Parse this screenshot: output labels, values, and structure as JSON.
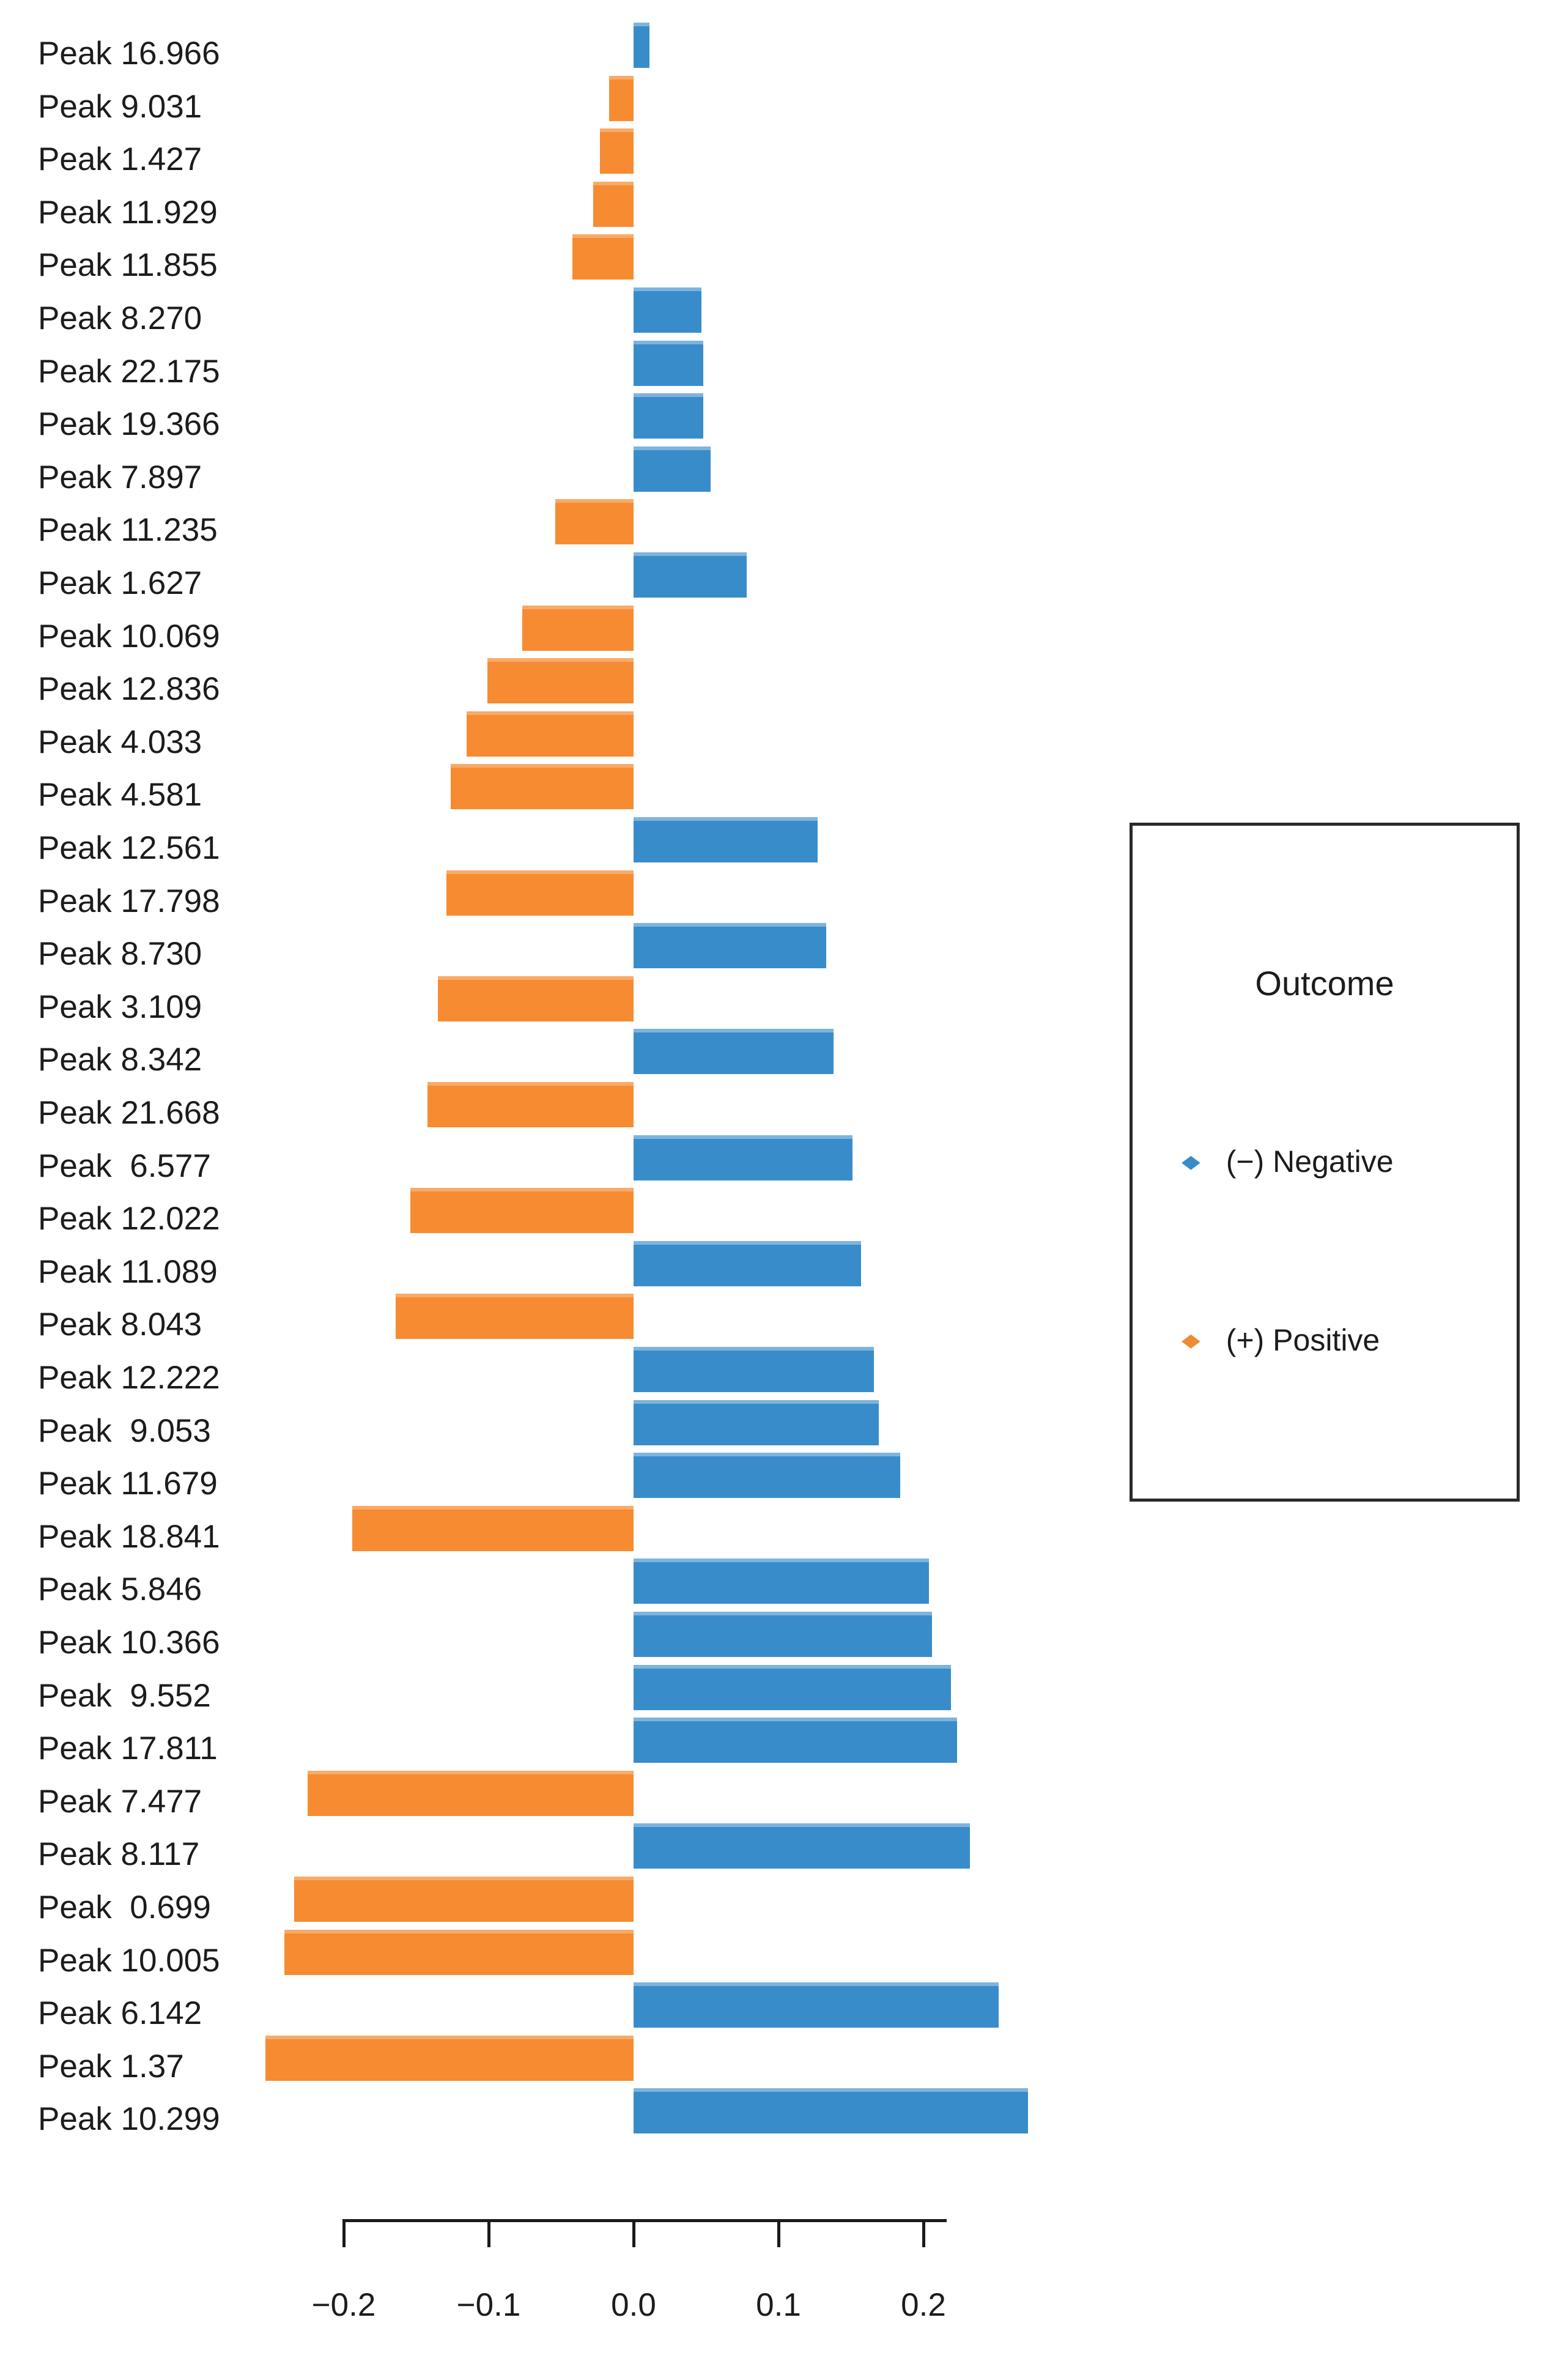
{
  "chart_data": {
    "type": "bar",
    "orientation": "horizontal_diverging",
    "title": "",
    "xlabel": "",
    "ylabel": "",
    "xlim": [
      -0.26,
      0.28
    ],
    "x_ticks": [
      -0.2,
      -0.1,
      0.0,
      0.1,
      0.2
    ],
    "x_tick_labels": [
      "−0.2",
      "−0.1",
      "0.0",
      "0.1",
      "0.2"
    ],
    "grid": false,
    "colors": {
      "negative_outcome": "#398CCA",
      "positive_outcome": "#F68B31",
      "axis": "#1a1a1a",
      "text": "#1c1c1c"
    },
    "bars": [
      {
        "label": "Peak 16.966",
        "value": 0.011,
        "outcome": "negative"
      },
      {
        "label": "Peak 9.031",
        "value": -0.017,
        "outcome": "positive"
      },
      {
        "label": "Peak 1.427",
        "value": -0.023,
        "outcome": "positive"
      },
      {
        "label": "Peak 11.929",
        "value": -0.028,
        "outcome": "positive"
      },
      {
        "label": "Peak 11.855",
        "value": -0.042,
        "outcome": "positive"
      },
      {
        "label": "Peak 8.270",
        "value": 0.047,
        "outcome": "negative"
      },
      {
        "label": "Peak 22.175",
        "value": 0.048,
        "outcome": "negative"
      },
      {
        "label": "Peak 19.366",
        "value": 0.048,
        "outcome": "negative"
      },
      {
        "label": "Peak 7.897",
        "value": 0.053,
        "outcome": "negative"
      },
      {
        "label": "Peak 11.235",
        "value": -0.054,
        "outcome": "positive"
      },
      {
        "label": "Peak 1.627",
        "value": 0.078,
        "outcome": "negative"
      },
      {
        "label": "Peak 10.069",
        "value": -0.077,
        "outcome": "positive"
      },
      {
        "label": "Peak 12.836",
        "value": -0.101,
        "outcome": "positive"
      },
      {
        "label": "Peak 4.033",
        "value": -0.115,
        "outcome": "positive"
      },
      {
        "label": "Peak 4.581",
        "value": -0.126,
        "outcome": "positive"
      },
      {
        "label": "Peak 12.561",
        "value": 0.127,
        "outcome": "negative"
      },
      {
        "label": "Peak 17.798",
        "value": -0.129,
        "outcome": "positive"
      },
      {
        "label": "Peak 8.730",
        "value": 0.133,
        "outcome": "negative"
      },
      {
        "label": "Peak 3.109",
        "value": -0.135,
        "outcome": "positive"
      },
      {
        "label": "Peak 8.342",
        "value": 0.138,
        "outcome": "negative"
      },
      {
        "label": "Peak 21.668",
        "value": -0.142,
        "outcome": "positive"
      },
      {
        "label": "Peak  6.577",
        "value": 0.151,
        "outcome": "negative"
      },
      {
        "label": "Peak 12.022",
        "value": -0.154,
        "outcome": "positive"
      },
      {
        "label": "Peak 11.089",
        "value": 0.157,
        "outcome": "negative"
      },
      {
        "label": "Peak 8.043",
        "value": -0.164,
        "outcome": "positive"
      },
      {
        "label": "Peak 12.222",
        "value": 0.166,
        "outcome": "negative"
      },
      {
        "label": "Peak  9.053",
        "value": 0.169,
        "outcome": "negative"
      },
      {
        "label": "Peak 11.679",
        "value": 0.184,
        "outcome": "negative"
      },
      {
        "label": "Peak 18.841",
        "value": -0.194,
        "outcome": "positive"
      },
      {
        "label": "Peak 5.846",
        "value": 0.204,
        "outcome": "negative"
      },
      {
        "label": "Peak 10.366",
        "value": 0.206,
        "outcome": "negative"
      },
      {
        "label": "Peak  9.552",
        "value": 0.219,
        "outcome": "negative"
      },
      {
        "label": "Peak 17.811",
        "value": 0.223,
        "outcome": "negative"
      },
      {
        "label": "Peak 7.477",
        "value": -0.225,
        "outcome": "positive"
      },
      {
        "label": "Peak 8.117",
        "value": 0.232,
        "outcome": "negative"
      },
      {
        "label": "Peak  0.699",
        "value": -0.234,
        "outcome": "positive"
      },
      {
        "label": "Peak 10.005",
        "value": -0.241,
        "outcome": "positive"
      },
      {
        "label": "Peak 6.142",
        "value": 0.252,
        "outcome": "negative"
      },
      {
        "label": "Peak 1.37",
        "value": -0.254,
        "outcome": "positive"
      },
      {
        "label": "Peak 10.299",
        "value": 0.272,
        "outcome": "negative"
      }
    ],
    "legend": {
      "position": "right",
      "title": "Outcome",
      "entries": [
        {
          "label": "(−) Negative",
          "color": "#398CCA",
          "marker": "diamond-icon"
        },
        {
          "label": "(+) Positive",
          "color": "#F08A33",
          "marker": "diamond-icon"
        }
      ]
    }
  }
}
